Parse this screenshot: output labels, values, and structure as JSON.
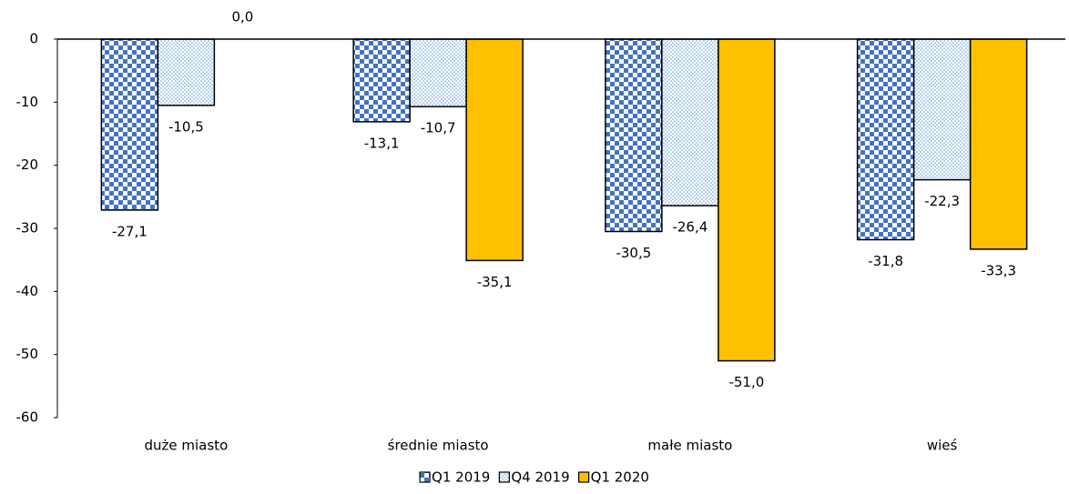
{
  "chart_data": {
    "type": "bar",
    "categories": [
      "duże miasto",
      "średnie miasto",
      "małe miasto",
      "wieś"
    ],
    "series": [
      {
        "name": "Q1 2019",
        "color": "#4472c4",
        "pattern": "checkerboard",
        "values": [
          -27.1,
          -13.1,
          -30.5,
          -31.8
        ],
        "value_labels": [
          "-27,1",
          "-13,1",
          "-30,5",
          "-31,8"
        ]
      },
      {
        "name": "Q4 2019",
        "color": "#5b9bd5",
        "pattern": "dots",
        "values": [
          -10.5,
          -10.7,
          -26.4,
          -22.3
        ],
        "value_labels": [
          "-10,5",
          "-10,7",
          "-26,4",
          "-22,3"
        ]
      },
      {
        "name": "Q1 2020",
        "color": "#ffc000",
        "values": [
          0.0,
          -35.1,
          -51.0,
          -33.3
        ],
        "value_labels": [
          "0,0",
          "-35,1",
          "-51,0",
          "-33,3"
        ]
      }
    ],
    "ylim": [
      -60,
      0
    ],
    "yticks": [
      0,
      -10,
      -20,
      -30,
      -40,
      -50,
      -60
    ],
    "grid": false,
    "legend": "bottom"
  }
}
